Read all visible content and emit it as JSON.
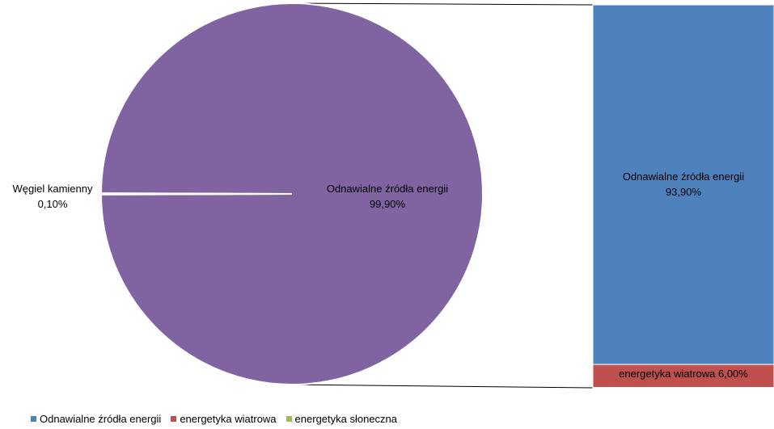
{
  "chart_data": {
    "type": "bar-of-pie",
    "pie": {
      "slices": [
        {
          "label": "Węgiel kamienny",
          "value": 0.1,
          "value_label": "0,10%",
          "color": "#4F81BD"
        },
        {
          "label": "Odnawialne źródła energii",
          "value": 99.9,
          "value_label": "99,90%",
          "color": "#8064A2"
        }
      ]
    },
    "bar": {
      "segments": [
        {
          "label": "Odnawialne źródła energii",
          "value": 93.9,
          "value_label": "93,90%",
          "color": "#4F81BD"
        },
        {
          "label": "energetyka wiatrowa",
          "value": 6.0,
          "value_label": "6,00%",
          "color": "#C0504D",
          "inline_label": "energetyka wiatrowa 6,00%"
        },
        {
          "label": "energetyka słoneczna",
          "value": 0.1,
          "value_label": "",
          "color": "#9BBB59"
        }
      ]
    },
    "legend": {
      "position": "bottom-left",
      "entries": [
        {
          "label": "Odnawialne źródła energii",
          "color": "#4F81BD"
        },
        {
          "label": "energetyka wiatrowa",
          "color": "#C0504D"
        },
        {
          "label": "energetyka słoneczna",
          "color": "#9BBB59"
        }
      ]
    }
  }
}
